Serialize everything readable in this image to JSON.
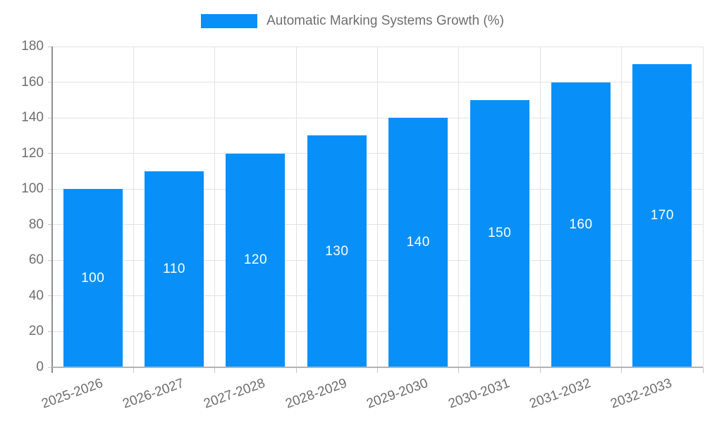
{
  "legend": {
    "label": "Automatic Marking Systems Growth (%)"
  },
  "chart_data": {
    "type": "bar",
    "title": "",
    "xlabel": "",
    "ylabel": "",
    "categories": [
      "2025-2026",
      "2026-2027",
      "2027-2028",
      "2028-2029",
      "2029-2030",
      "2030-2031",
      "2031-2032",
      "2032-2033"
    ],
    "values": [
      100,
      110,
      120,
      130,
      140,
      150,
      160,
      170
    ],
    "bar_labels": [
      "100",
      "110",
      "120",
      "130",
      "140",
      "150",
      "160",
      "170"
    ],
    "series_name": "Automatic Marking Systems Growth (%)",
    "ylim": [
      0,
      180
    ],
    "ytick_step": 20,
    "ytick_labels": [
      "0",
      "20",
      "40",
      "60",
      "80",
      "100",
      "120",
      "140",
      "160",
      "180"
    ],
    "grid": true,
    "legend_position": "top",
    "colors": {
      "bar": "#0890f8",
      "grid": "#e2e2e2",
      "y_axis": "#8f8f8f",
      "x_axis": "#b3b3b3",
      "tick": "#c6c6c6",
      "text": "#6e6e6e",
      "bar_label_text": "#ffffff"
    }
  }
}
